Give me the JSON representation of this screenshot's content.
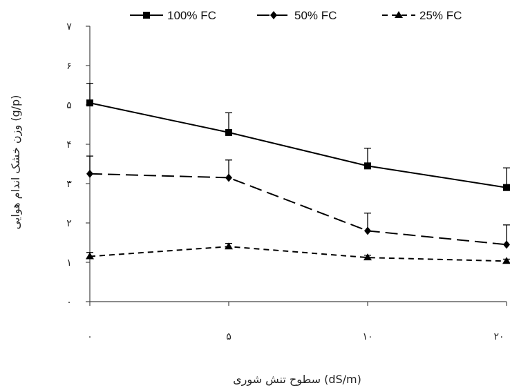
{
  "chart_data": {
    "type": "line",
    "xlabel": "سطوح تنش شوری (dS/m)",
    "ylabel": "وزن خشک اندام هوایی (g/p)",
    "categories": [
      "۰",
      "۵",
      "۱۰",
      "۲۰"
    ],
    "yticks": [
      "۰",
      "۱",
      "۲",
      "۳",
      "۴",
      "۵",
      "۶",
      "۷"
    ],
    "ylim": [
      0,
      7
    ],
    "grid": false,
    "legend_position": "top",
    "series": [
      {
        "name": "100% FC",
        "values": [
          5.05,
          4.3,
          3.45,
          2.9
        ],
        "errors": [
          0.5,
          0.5,
          0.45,
          0.5
        ],
        "marker": "square",
        "dash": "solid",
        "color": "#000000"
      },
      {
        "name": "50% FC",
        "values": [
          3.25,
          3.15,
          1.8,
          1.45
        ],
        "errors": [
          0.45,
          0.45,
          0.45,
          0.5
        ],
        "marker": "diamond",
        "dash": "long-dash",
        "color": "#000000"
      },
      {
        "name": "25% FC",
        "values": [
          1.15,
          1.4,
          1.12,
          1.03
        ],
        "errors": [
          0.1,
          0.08,
          0.06,
          0.05
        ],
        "marker": "triangle",
        "dash": "short-dash",
        "color": "#000000"
      }
    ]
  }
}
